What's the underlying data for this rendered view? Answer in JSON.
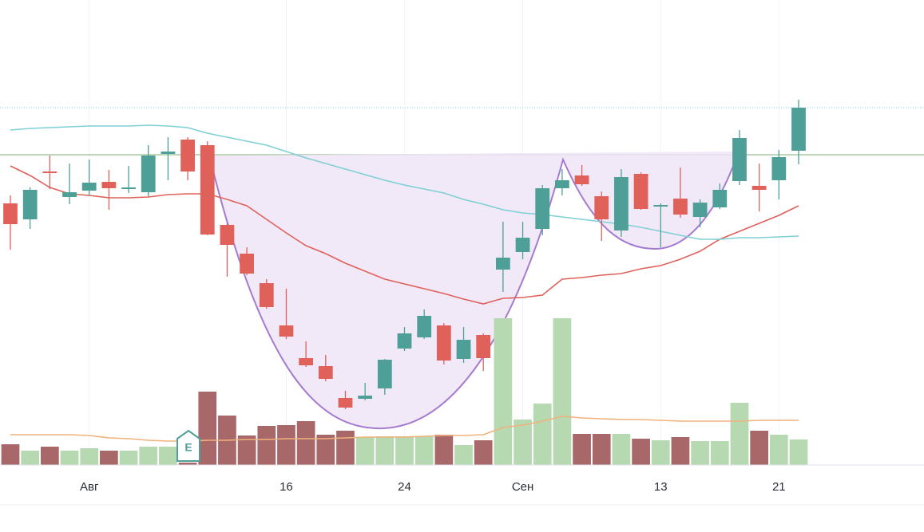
{
  "chart_data": {
    "type": "candlestick",
    "categories": [
      null,
      null,
      null,
      null,
      "Авг",
      null,
      null,
      null,
      null,
      null,
      null,
      null,
      null,
      null,
      "16",
      null,
      null,
      null,
      null,
      null,
      "24",
      null,
      null,
      null,
      null,
      null,
      "Сен",
      null,
      null,
      null,
      null,
      null,
      null,
      "13",
      null,
      null,
      null,
      null,
      null,
      "21",
      null
    ],
    "open": [
      328,
      308,
      368,
      336,
      344,
      355,
      346,
      342,
      390,
      408,
      401,
      301,
      265,
      228,
      175,
      134,
      124,
      84,
      83,
      96,
      146,
      160,
      175,
      133,
      163,
      245,
      267,
      296,
      347,
      363,
      337,
      294,
      365,
      324,
      334,
      311,
      323,
      356,
      350,
      357,
      394
    ],
    "high": [
      338,
      348,
      388,
      378,
      383,
      370,
      375,
      401,
      411,
      411,
      406,
      303,
      273,
      233,
      221,
      155,
      138,
      93,
      103,
      133,
      173,
      195,
      178,
      173,
      165,
      305,
      305,
      351,
      371,
      376,
      343,
      371,
      367,
      328,
      373,
      333,
      353,
      420,
      378,
      395,
      458
    ],
    "low": [
      270,
      296,
      346,
      327,
      338,
      320,
      341,
      337,
      357,
      357,
      288,
      236,
      238,
      196,
      158,
      123,
      105,
      70,
      81,
      88,
      143,
      158,
      126,
      128,
      118,
      217,
      258,
      288,
      338,
      350,
      281,
      286,
      320,
      273,
      310,
      298,
      321,
      351,
      318,
      333,
      377
    ],
    "close": [
      302,
      345,
      366,
      342,
      354,
      347,
      348,
      388,
      393,
      368,
      289,
      276,
      240,
      198,
      161,
      125,
      108,
      72,
      87,
      132,
      165,
      187,
      131,
      157,
      134,
      260,
      285,
      347,
      357,
      352,
      308,
      361,
      321,
      326,
      314,
      329,
      345,
      410,
      345,
      386,
      448
    ],
    "volume": [
      26,
      18,
      23,
      18,
      21,
      18,
      18,
      23,
      23,
      3,
      92,
      62,
      37,
      49,
      50,
      55,
      38,
      43,
      35,
      36,
      36,
      36,
      38,
      25,
      31,
      184,
      57,
      77,
      184,
      39,
      39,
      39,
      33,
      31,
      35,
      30,
      30,
      78,
      43,
      38,
      32
    ],
    "up_color": "#4e9f98",
    "down_color": "#e0605a",
    "volume_up_color": "#b6d9b2",
    "volume_down_color": "#a8686a",
    "ylim": [
      0,
      583
    ],
    "y2lim": [
      0,
      583
    ],
    "lines": [
      {
        "color": "#e0605a",
        "values": [
          375,
          363,
          348,
          340,
          338,
          335,
          335,
          336,
          339,
          340,
          340,
          333,
          325,
          308,
          291,
          275,
          265,
          253,
          243,
          233,
          227,
          221,
          215,
          208,
          202,
          209,
          210,
          213,
          233,
          235,
          238,
          240,
          246,
          250,
          258,
          268,
          283,
          293,
          303,
          313,
          325
        ]
      },
      {
        "color": "#7fcfd6",
        "values": [
          420,
          422,
          423,
          424,
          425,
          425,
          425,
          426,
          425,
          423,
          416,
          411,
          406,
          401,
          393,
          385,
          378,
          371,
          364,
          357,
          351,
          346,
          341,
          333,
          327,
          320,
          316,
          314,
          311,
          308,
          305,
          302,
          298,
          293,
          288,
          283,
          283,
          285,
          285,
          286,
          287
        ]
      },
      {
        "color": "#f0b27a",
        "axis": "y2",
        "values": [
          38,
          38,
          38,
          38,
          37,
          34,
          33,
          31,
          30,
          30,
          31,
          31,
          32,
          32,
          33,
          33,
          33,
          34,
          35,
          35,
          35,
          36,
          37,
          37,
          38,
          47,
          50,
          55,
          61,
          59,
          58,
          57,
          57,
          56,
          55,
          55,
          55,
          55,
          56,
          56,
          56
        ]
      }
    ],
    "hlines": [
      {
        "value": 448,
        "color": "#7fcfd6",
        "style": "dotted"
      },
      {
        "value": 389,
        "color": "#a9c9a4",
        "style": "solid"
      }
    ],
    "earnings_marker": "E",
    "grid": true
  }
}
